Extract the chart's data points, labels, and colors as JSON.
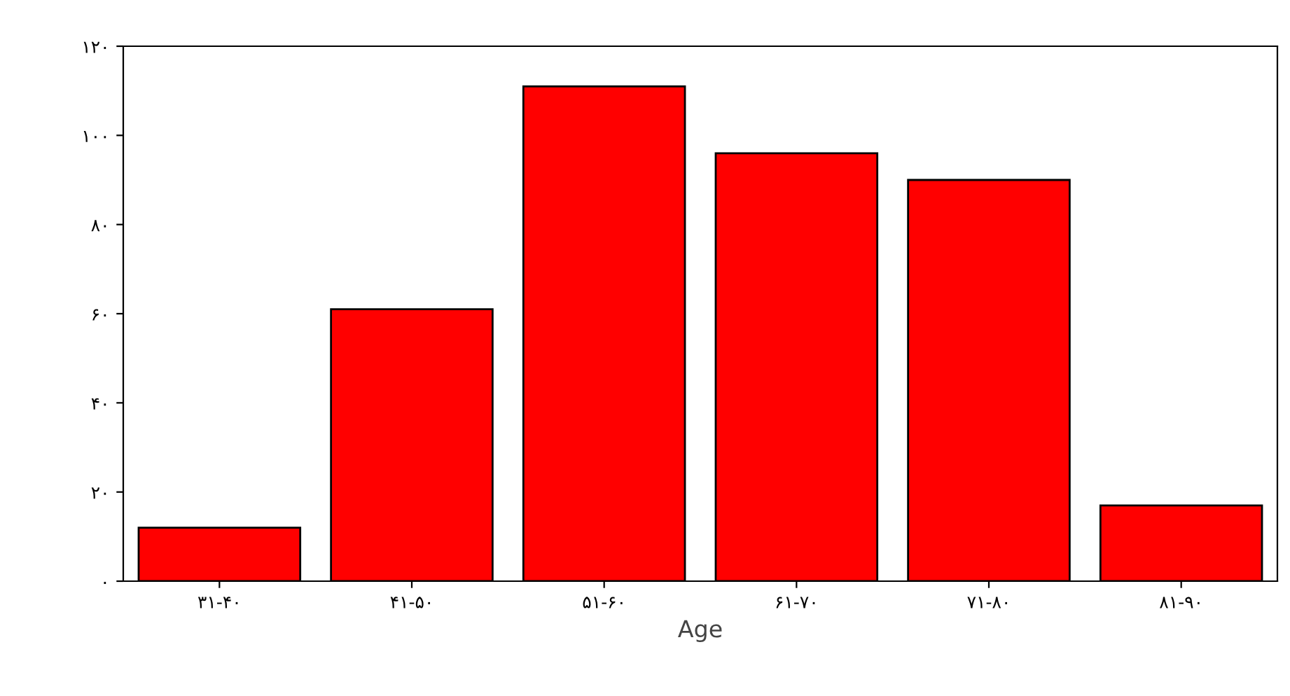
{
  "chart_data": {
    "type": "bar",
    "xlabel": "Age",
    "categories": [
      "۳۱-۴۰",
      "۴۱-۵۰",
      "۵۱-۶۰",
      "۶۱-۷۰",
      "۷۱-۸۰",
      "۸۱-۹۰"
    ],
    "values": [
      12,
      61,
      111,
      96,
      90,
      17
    ],
    "color": "#ff0000",
    "ylim": [
      0,
      120
    ],
    "yticks": [
      {
        "value": 0,
        "label": "۰"
      },
      {
        "value": 20,
        "label": "۲۰"
      },
      {
        "value": 40,
        "label": "۴۰"
      },
      {
        "value": 60,
        "label": "۶۰"
      },
      {
        "value": 80,
        "label": "۸۰"
      },
      {
        "value": 100,
        "label": "۱۰۰"
      },
      {
        "value": 120,
        "label": "۱۲۰"
      }
    ],
    "grid": false
  }
}
